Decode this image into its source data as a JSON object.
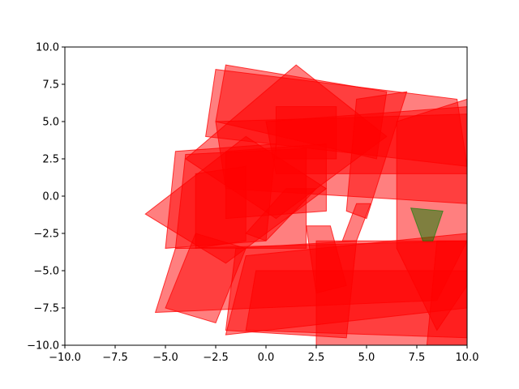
{
  "chart_data": {
    "type": "area",
    "title": "",
    "xlabel": "",
    "ylabel": "",
    "xlim": [
      -10,
      10
    ],
    "ylim": [
      -10,
      10
    ],
    "grid": false,
    "xticks": [
      -10,
      -7.5,
      -5,
      -2.5,
      0,
      2.5,
      5,
      7.5,
      10
    ],
    "yticks": [
      -10,
      -7.5,
      -5,
      -2.5,
      0,
      2.5,
      5,
      7.5,
      10
    ],
    "xtick_labels": [
      "−10.0",
      "−7.5",
      "−5.0",
      "−2.5",
      "0.0",
      "2.5",
      "5.0",
      "7.5",
      "10.0"
    ],
    "ytick_labels": [
      "−10.0",
      "−7.5",
      "−5.0",
      "−2.5",
      "0.0",
      "2.5",
      "5.0",
      "7.5",
      "10.0"
    ],
    "colors": {
      "obstacle": "#ff0000",
      "goal": "#008000"
    },
    "obstacles": [
      [
        [
          -2.5,
          8.5
        ],
        [
          9.5,
          6.5
        ],
        [
          10,
          2.0
        ],
        [
          -3.0,
          4.0
        ]
      ],
      [
        [
          -2.0,
          8.8
        ],
        [
          6.0,
          7.0
        ],
        [
          5.5,
          2.5
        ],
        [
          -2.5,
          5.0
        ]
      ],
      [
        [
          -4.0,
          2.8
        ],
        [
          2.0,
          3.2
        ],
        [
          2.0,
          -3.5
        ],
        [
          -4.5,
          -3.5
        ]
      ],
      [
        [
          -6.0,
          -1.2
        ],
        [
          -1.0,
          4.0
        ],
        [
          3.0,
          0.5
        ],
        [
          -2.0,
          -4.5
        ]
      ],
      [
        [
          -4.5,
          3.0
        ],
        [
          0.5,
          3.5
        ],
        [
          0.0,
          -3.0
        ],
        [
          -5.0,
          -3.5
        ]
      ],
      [
        [
          -2.5,
          5.0
        ],
        [
          10.0,
          5.5
        ],
        [
          10.0,
          -0.5
        ],
        [
          -2.0,
          0.5
        ]
      ],
      [
        [
          0.0,
          5.0
        ],
        [
          10.0,
          6.0
        ],
        [
          10.0,
          1.5
        ],
        [
          0.5,
          1.5
        ]
      ],
      [
        [
          -5.5,
          -7.8
        ],
        [
          8.5,
          -7.0
        ],
        [
          10.0,
          -3.0
        ],
        [
          -4.5,
          -3.5
        ]
      ],
      [
        [
          -5.0,
          -7.5
        ],
        [
          -2.5,
          -8.5
        ],
        [
          -1.0,
          -3.5
        ],
        [
          -3.5,
          -2.5
        ]
      ],
      [
        [
          -2.0,
          -9.3
        ],
        [
          10.0,
          -7.5
        ],
        [
          10.0,
          -2.5
        ],
        [
          -1.0,
          -4.0
        ]
      ],
      [
        [
          -1.0,
          -9.0
        ],
        [
          10.0,
          -9.5
        ],
        [
          10.0,
          -5.0
        ],
        [
          -0.5,
          -5.0
        ]
      ],
      [
        [
          2.5,
          -10.0
        ],
        [
          10.0,
          -10.0
        ],
        [
          10.0,
          -3.0
        ],
        [
          2.5,
          -3.0
        ]
      ],
      [
        [
          -4.0,
          2.5
        ],
        [
          1.5,
          8.8
        ],
        [
          6.0,
          4.0
        ],
        [
          0.5,
          -1.5
        ]
      ],
      [
        [
          4.5,
          6.5
        ],
        [
          7.0,
          7.0
        ],
        [
          5.0,
          -1.5
        ],
        [
          4.0,
          -1.0
        ]
      ],
      [
        [
          1.0,
          0.5
        ],
        [
          2.5,
          0.5
        ],
        [
          0.0,
          -3.0
        ],
        [
          -1.0,
          -2.5
        ]
      ],
      [
        [
          4.5,
          -0.5
        ],
        [
          5.2,
          -0.5
        ],
        [
          4.5,
          -3.0
        ],
        [
          3.8,
          -3.0
        ]
      ],
      [
        [
          2.0,
          -2.0
        ],
        [
          3.2,
          -2.0
        ],
        [
          4.0,
          -6.0
        ],
        [
          2.5,
          -6.5
        ]
      ],
      [
        [
          -2.0,
          3.0
        ],
        [
          3.0,
          3.5
        ],
        [
          3.0,
          -1.0
        ],
        [
          -2.0,
          -1.5
        ]
      ],
      [
        [
          -1.5,
          -3.5
        ],
        [
          4.5,
          -3.0
        ],
        [
          4.0,
          -9.5
        ],
        [
          -2.0,
          -9.0
        ]
      ],
      [
        [
          6.5,
          5.0
        ],
        [
          10.0,
          6.5
        ],
        [
          10.0,
          -6.0
        ],
        [
          8.5,
          -9.0
        ],
        [
          6.5,
          -3.5
        ]
      ],
      [
        [
          8.5,
          -3.0
        ],
        [
          10.0,
          -3.0
        ],
        [
          10.0,
          -10.0
        ],
        [
          8.0,
          -10.0
        ]
      ],
      [
        [
          -3.5,
          1.5
        ],
        [
          -1.0,
          2.0
        ],
        [
          -1.0,
          -3.0
        ],
        [
          -3.5,
          -3.5
        ]
      ],
      [
        [
          0.5,
          6.0
        ],
        [
          3.5,
          6.0
        ],
        [
          3.5,
          2.5
        ],
        [
          0.5,
          2.5
        ]
      ]
    ],
    "goal": [
      [
        7.2,
        -0.8
      ],
      [
        8.8,
        -1.0
      ],
      [
        8.3,
        -3.0
      ],
      [
        7.8,
        -3.0
      ]
    ]
  }
}
